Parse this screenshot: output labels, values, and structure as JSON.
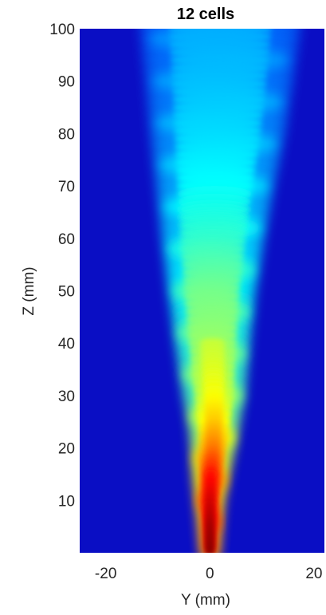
{
  "chart_data": {
    "type": "heatmap",
    "title": "12 cells",
    "xlabel": "Y (mm)",
    "ylabel": "Z (mm)",
    "xlim": [
      -25,
      22
    ],
    "ylim": [
      0,
      100
    ],
    "xticks": [
      -20,
      0,
      20
    ],
    "yticks": [
      10,
      20,
      30,
      40,
      50,
      60,
      70,
      80,
      90,
      100
    ],
    "grid": false,
    "colormap": "jet",
    "background_color": "#0a0ec4",
    "plume_profile": {
      "z": [
        0,
        5,
        10,
        15,
        20,
        25,
        30,
        40,
        50,
        60,
        70,
        80,
        90,
        100
      ],
      "center_y": [
        0,
        0,
        0,
        0.2,
        0.6,
        0.8,
        0.8,
        0.5,
        0.4,
        0.6,
        1.0,
        1.5,
        1.8,
        2.0
      ],
      "half_width": [
        1.5,
        1.8,
        2.2,
        2.8,
        3.4,
        4.0,
        4.8,
        5.8,
        6.8,
        8.0,
        9.2,
        10.5,
        11.5,
        12.5
      ],
      "intensity": [
        1.0,
        0.97,
        0.92,
        0.86,
        0.76,
        0.68,
        0.62,
        0.57,
        0.53,
        0.46,
        0.41,
        0.37,
        0.34,
        0.32
      ]
    }
  }
}
